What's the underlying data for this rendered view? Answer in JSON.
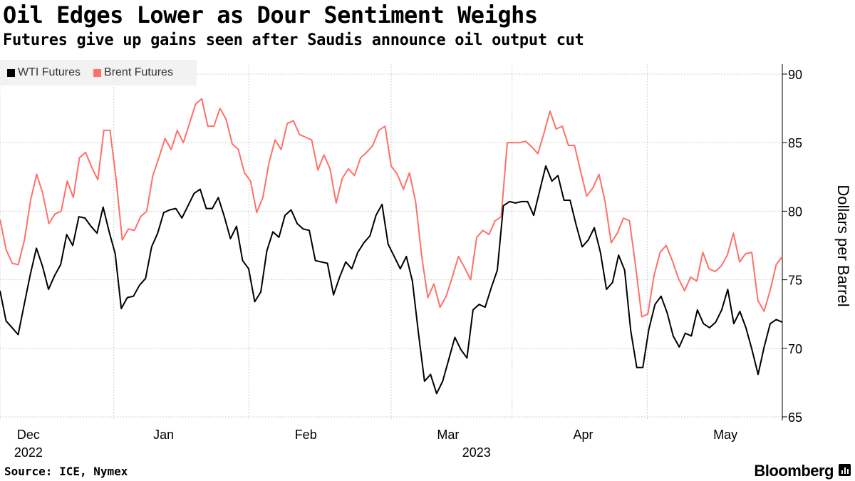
{
  "header": {
    "title": "Oil Edges Lower as Dour Sentiment Weighs",
    "subtitle": "Futures give up gains seen after Saudis announce oil output cut"
  },
  "footer": {
    "source": "Source: ICE, Nymex",
    "brand": "Bloomberg"
  },
  "chart_data": {
    "type": "line",
    "title": "Oil Edges Lower as Dour Sentiment Weighs",
    "subtitle": "Futures give up gains seen after Saudis announce oil output cut",
    "xlabel": "",
    "ylabel": "Dollars per Barrel",
    "ylim": [
      65,
      91
    ],
    "yticks": [
      65,
      70,
      75,
      80,
      85,
      90
    ],
    "grid": true,
    "legend_position": "top-left",
    "x_start_offset": -3,
    "x_end_offset": 107,
    "month_ticks": [
      {
        "label": "Dec",
        "offset": 1
      },
      {
        "label": "Jan",
        "offset": 20
      },
      {
        "label": "Feb",
        "offset": 40
      },
      {
        "label": "Mar",
        "offset": 60
      },
      {
        "label": "Apr",
        "offset": 79
      },
      {
        "label": "May",
        "offset": 99
      }
    ],
    "year_labels": [
      {
        "label": "2022",
        "offset": 1
      },
      {
        "label": "2023",
        "offset": 64
      }
    ],
    "month_gridlines": [
      -3,
      13,
      32,
      52,
      69,
      88,
      107
    ],
    "series": [
      {
        "name": "WTI Futures",
        "color": "#000000",
        "values": [
          74.2,
          72.0,
          71.5,
          71.0,
          73.2,
          75.4,
          77.3,
          76.0,
          74.3,
          75.3,
          76.1,
          78.3,
          77.5,
          79.6,
          79.5,
          78.9,
          78.4,
          80.3,
          78.5,
          76.9,
          72.9,
          73.7,
          73.8,
          74.6,
          75.1,
          77.4,
          78.4,
          79.9,
          80.1,
          80.2,
          79.5,
          80.4,
          81.3,
          81.6,
          80.2,
          80.2,
          81.0,
          79.6,
          78.0,
          78.9,
          76.4,
          75.8,
          73.4,
          74.1,
          77.1,
          78.5,
          78.1,
          79.7,
          80.1,
          79.1,
          78.7,
          78.6,
          76.4,
          76.3,
          76.2,
          73.9,
          75.2,
          76.3,
          75.8,
          77.0,
          77.7,
          78.2,
          79.7,
          80.5,
          77.6,
          76.7,
          75.8,
          76.7,
          74.9,
          71.1,
          67.6,
          68.1,
          66.7,
          67.6,
          69.2,
          70.8,
          69.9,
          69.3,
          72.8,
          73.2,
          73.0,
          74.4,
          75.7,
          80.4,
          80.7,
          80.6,
          80.7,
          80.7,
          79.7,
          81.5,
          83.3,
          82.2,
          82.6,
          80.8,
          80.8,
          79.0,
          77.4,
          77.9,
          78.8,
          77.0,
          74.3,
          74.8,
          76.8,
          75.7,
          71.3,
          68.6,
          68.6,
          71.4,
          73.2,
          73.8,
          72.6,
          70.9,
          70.1,
          71.1,
          70.9,
          72.8,
          71.8,
          71.5,
          71.9,
          72.8,
          74.3,
          71.8,
          72.7,
          71.5,
          69.9,
          68.1,
          70.1,
          71.8,
          72.1,
          71.9
        ]
      },
      {
        "name": "Brent Futures",
        "color": "#ff7069",
        "values": [
          79.4,
          77.2,
          76.2,
          76.1,
          77.9,
          80.8,
          82.7,
          81.3,
          79.1,
          79.8,
          80.0,
          82.2,
          81.0,
          83.9,
          84.3,
          83.2,
          82.3,
          85.9,
          85.9,
          82.3,
          77.9,
          78.7,
          78.6,
          79.6,
          80.0,
          82.6,
          83.9,
          85.3,
          84.5,
          85.9,
          85.0,
          86.4,
          87.8,
          88.2,
          86.2,
          86.2,
          87.5,
          86.7,
          84.9,
          84.5,
          82.8,
          82.2,
          79.9,
          81.0,
          83.5,
          85.2,
          84.5,
          86.4,
          86.6,
          85.6,
          85.4,
          85.2,
          83.0,
          84.1,
          83.1,
          80.6,
          82.4,
          83.1,
          82.6,
          83.9,
          84.3,
          84.8,
          85.9,
          86.2,
          83.3,
          82.7,
          81.6,
          82.8,
          80.7,
          76.7,
          73.7,
          74.7,
          73.0,
          73.8,
          75.2,
          76.7,
          75.9,
          75.0,
          78.1,
          78.6,
          78.3,
          79.3,
          79.6,
          85.0,
          85.0,
          85.0,
          85.1,
          84.7,
          84.2,
          85.7,
          87.3,
          86.0,
          86.2,
          84.8,
          84.8,
          82.9,
          81.1,
          81.7,
          82.7,
          80.7,
          77.7,
          78.4,
          79.5,
          79.3,
          76.0,
          72.3,
          72.5,
          75.3,
          77.0,
          77.5,
          76.4,
          75.1,
          74.2,
          75.2,
          74.9,
          77.0,
          75.8,
          75.6,
          76.0,
          76.8,
          78.4,
          76.3,
          76.9,
          77.0,
          73.5,
          72.7,
          74.2,
          76.1,
          76.7
        ]
      }
    ]
  }
}
